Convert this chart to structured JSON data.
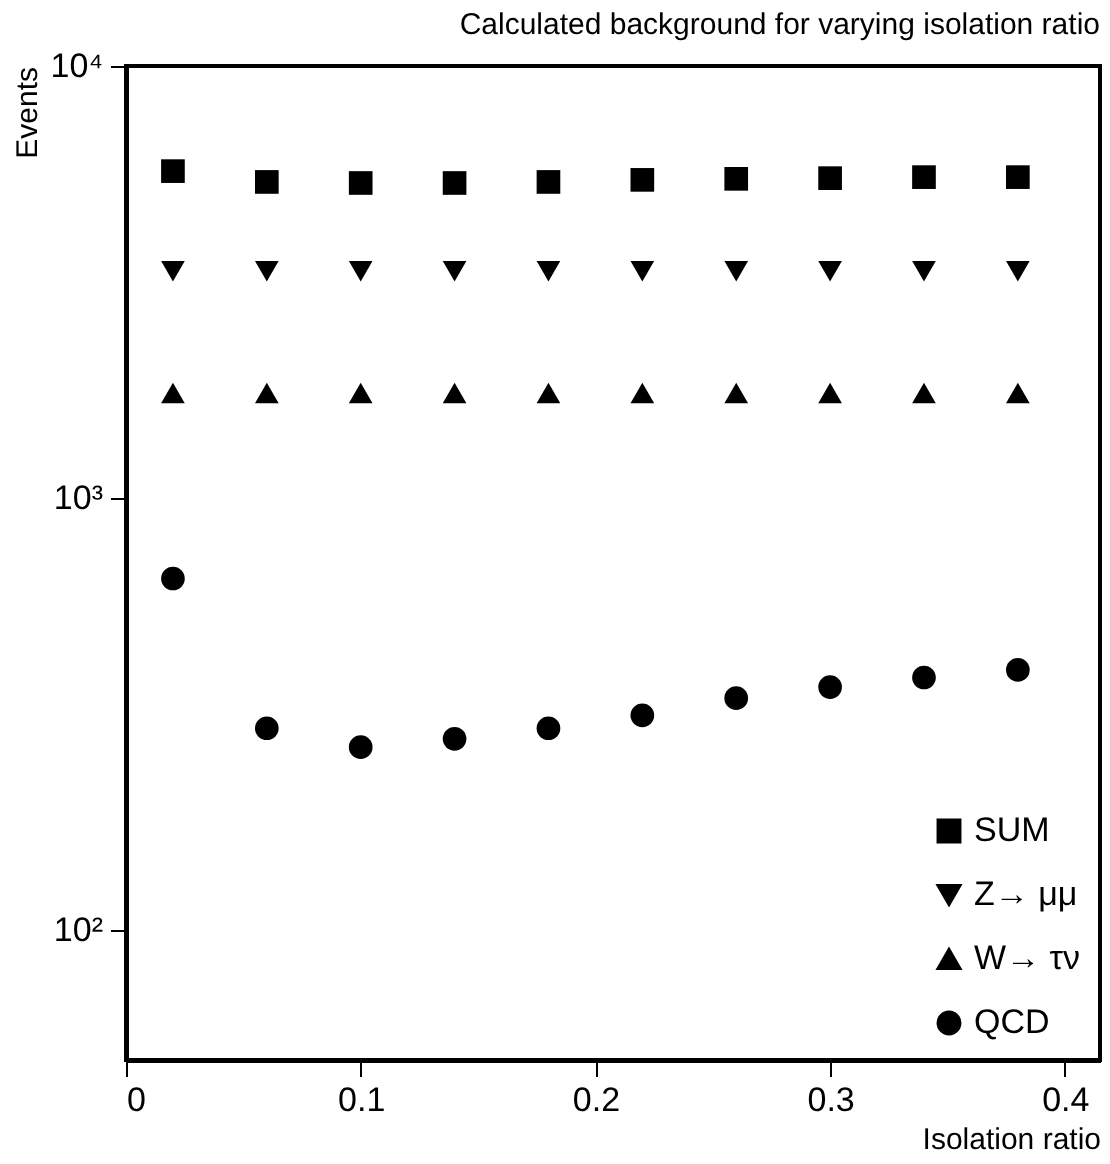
{
  "chart_data": {
    "type": "scatter",
    "title": "Calculated background for varying isolation ratio",
    "xlabel": "Isolation ratio",
    "ylabel": "Events",
    "x": [
      0.02,
      0.06,
      0.1,
      0.14,
      0.18,
      0.22,
      0.26,
      0.3,
      0.34,
      0.38
    ],
    "series": [
      {
        "name": "SUM",
        "color": "#000000",
        "marker": "square",
        "values": [
          5710,
          5390,
          5360,
          5360,
          5390,
          5450,
          5480,
          5500,
          5530,
          5530
        ]
      },
      {
        "name": "Z→ μμ",
        "color": "#000000",
        "marker": "triangle-down",
        "values": [
          3350,
          3350,
          3350,
          3350,
          3350,
          3350,
          3350,
          3350,
          3350,
          3350
        ]
      },
      {
        "name": "W→ τν",
        "color": "#000000",
        "marker": "triangle",
        "values": [
          1750,
          1750,
          1750,
          1750,
          1750,
          1750,
          1750,
          1750,
          1750,
          1750
        ]
      },
      {
        "name": "QCD",
        "color": "#000000",
        "marker": "circle",
        "values": [
          651,
          293,
          265,
          277,
          293,
          314,
          344,
          365,
          384,
          400
        ]
      }
    ],
    "xlim": [
      0,
      0.415
    ],
    "xticks": [
      0,
      0.1,
      0.2,
      0.3,
      0.4
    ],
    "ylim": [
      50,
      10000
    ],
    "yticks": [
      {
        "value": 100,
        "label": "10²"
      },
      {
        "value": 1000,
        "label": "10³"
      },
      {
        "value": 10000,
        "label": "10⁴"
      }
    ],
    "log": "y",
    "grid": false,
    "legend": "bottom right"
  }
}
